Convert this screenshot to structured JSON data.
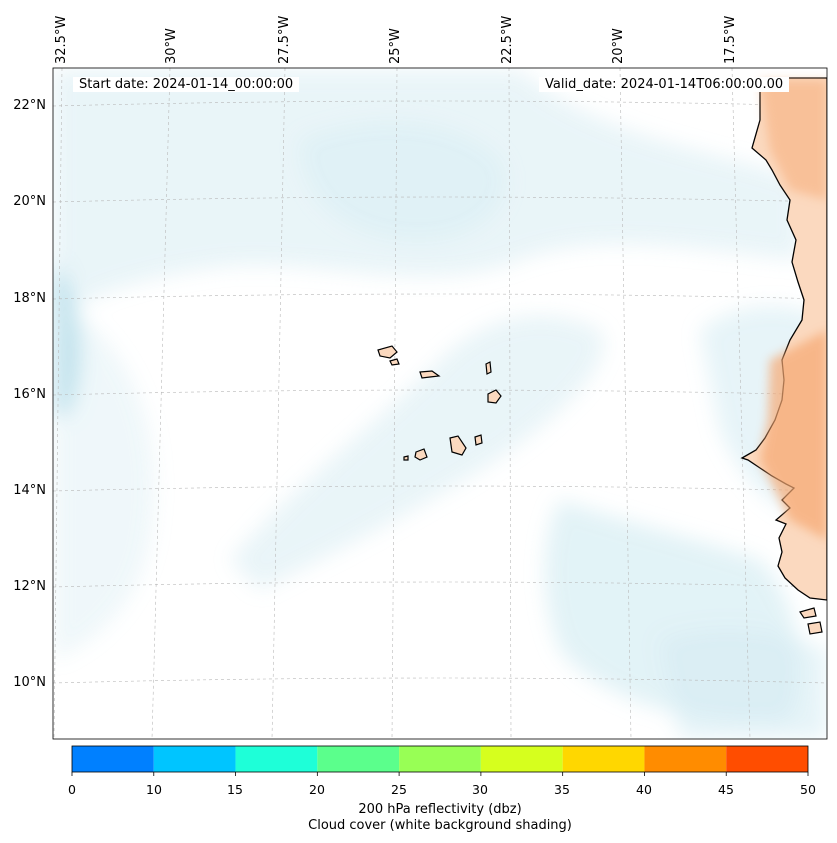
{
  "map": {
    "start_date": "Start date: 2024-01-14_00:00:00",
    "valid_date": "Valid_date: 2024-01-14T06:00:00.00",
    "lon_labels": [
      "32.5°W",
      "30°W",
      "27.5°W",
      "25°W",
      "22.5°W",
      "20°W",
      "17.5°W"
    ],
    "lat_labels": [
      "22°N",
      "20°N",
      "18°N",
      "16°N",
      "14°N",
      "12°N",
      "10°N"
    ],
    "land_color": "#fbd9bf",
    "land_hot_color": "#f6a872",
    "cloud_color": "#cfe9f1"
  },
  "colorbar": {
    "ticks": [
      "0",
      "10",
      "15",
      "20",
      "25",
      "30",
      "35",
      "40",
      "45",
      "50"
    ],
    "colors": [
      "#0080ff",
      "#00c5ff",
      "#1effd8",
      "#5bff8c",
      "#98ff55",
      "#d6ff1e",
      "#ffd700",
      "#ff8c00",
      "#ff4d00"
    ],
    "label_line1": "200 hPa reflectivity (dbz)",
    "label_line2": "Cloud cover (white background shading)"
  }
}
